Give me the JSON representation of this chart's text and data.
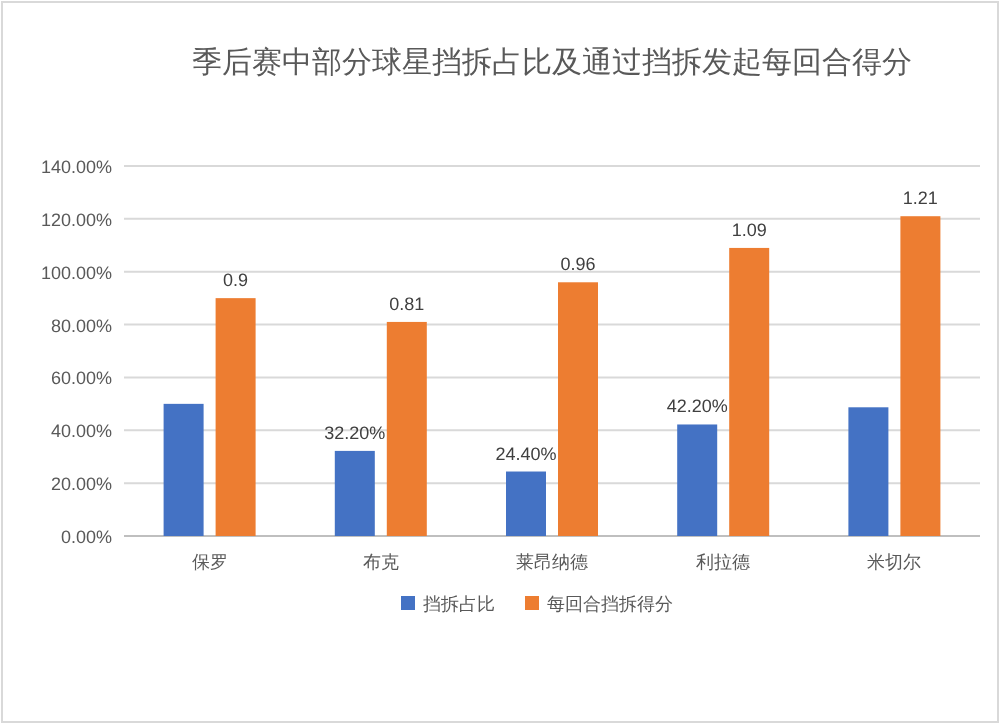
{
  "chart_data": {
    "type": "bar",
    "title": "季后赛中部分球星挡拆占比及通过挡拆发起每回合得分",
    "categories": [
      "保罗",
      "布克",
      "莱昂纳德",
      "利拉德",
      "米切尔"
    ],
    "series": [
      {
        "name": "挡拆占比",
        "color": "#4472c4",
        "values": [
          0.5,
          0.322,
          0.244,
          0.422,
          0.487
        ],
        "value_labels": [
          null,
          "32.20%",
          "24.40%",
          "42.20%",
          null
        ]
      },
      {
        "name": "每回合挡拆得分",
        "color": "#ed7d31",
        "values": [
          0.9,
          0.81,
          0.96,
          1.09,
          1.21
        ],
        "value_labels": [
          "0.9",
          "0.81",
          "0.96",
          "1.09",
          "1.21"
        ]
      }
    ],
    "ylim": [
      0,
      1.4
    ],
    "yticks": [
      {
        "value": 0,
        "label": "0.00%"
      },
      {
        "value": 0.2,
        "label": "20.00%"
      },
      {
        "value": 0.4,
        "label": "40.00%"
      },
      {
        "value": 0.6,
        "label": "60.00%"
      },
      {
        "value": 0.8,
        "label": "80.00%"
      },
      {
        "value": 1,
        "label": "100.00%"
      },
      {
        "value": 1.2,
        "label": "120.00%"
      },
      {
        "value": 1.4,
        "label": "140.00%"
      }
    ],
    "grid": "y",
    "legend": "bottom"
  }
}
